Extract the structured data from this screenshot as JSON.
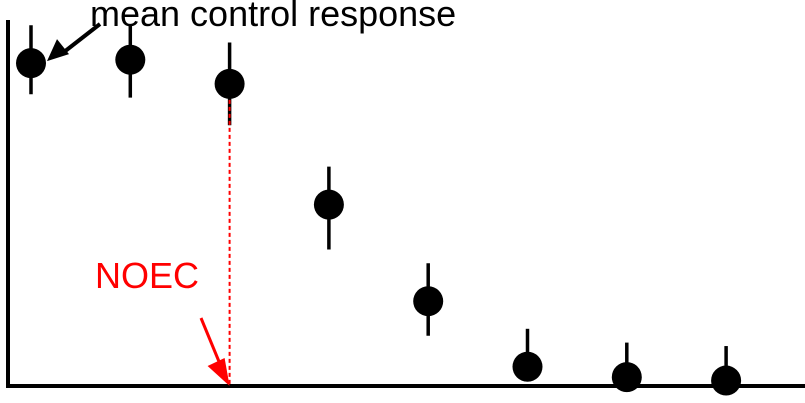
{
  "chart_data": {
    "type": "scatter",
    "title": "",
    "xlabel": "",
    "ylabel": "",
    "grid": false,
    "legend": "none",
    "points": [
      {
        "x": 1,
        "y": 0.93,
        "err_low": 0.09,
        "err_high": 0.11
      },
      {
        "x": 2,
        "y": 0.94,
        "err_low": 0.11,
        "err_high": 0.1
      },
      {
        "x": 3,
        "y": 0.87,
        "err_low": 0.12,
        "err_high": 0.12
      },
      {
        "x": 4,
        "y": 0.52,
        "err_low": 0.13,
        "err_high": 0.11
      },
      {
        "x": 5,
        "y": 0.24,
        "err_low": 0.1,
        "err_high": 0.11
      },
      {
        "x": 6,
        "y": 0.05,
        "err_low": 0.0,
        "err_high": 0.11
      },
      {
        "x": 7,
        "y": 0.02,
        "err_low": 0.0,
        "err_high": 0.1
      },
      {
        "x": 8,
        "y": 0.01,
        "err_low": 0.0,
        "err_high": 0.1
      }
    ],
    "annotations": {
      "control_label": "mean control response",
      "noec_label": "NOEC",
      "noec_x": 3
    },
    "colors": {
      "points": "#000000",
      "noec": "#ff0000"
    }
  }
}
